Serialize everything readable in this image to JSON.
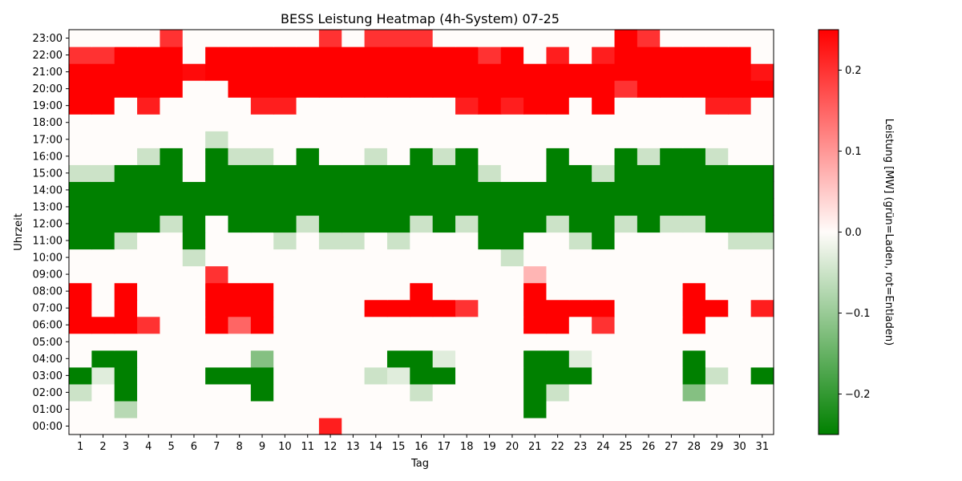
{
  "chart_data": {
    "type": "heatmap",
    "title": "BESS Leistung Heatmap (4h-System) 07-25",
    "xlabel": "Tag",
    "ylabel": "Uhrzeit",
    "colorbar_label": "Leistung [MW] (grün=Laden, rot=Entladen)",
    "colorbar_ticks": [
      {
        "value": 0.2,
        "label": "0.2"
      },
      {
        "value": 0.1,
        "label": "0.1"
      },
      {
        "value": 0.0,
        "label": "0.0"
      },
      {
        "value": -0.1,
        "label": "−0.1"
      },
      {
        "value": -0.2,
        "label": "−0.2"
      }
    ],
    "vmin": -0.25,
    "vmax": 0.25,
    "colors": {
      "negative": "#008000",
      "zero": "#fffcfa",
      "positive": "#ff0000"
    },
    "x_categories": [
      "1",
      "2",
      "3",
      "4",
      "5",
      "6",
      "7",
      "8",
      "9",
      "10",
      "11",
      "12",
      "13",
      "14",
      "15",
      "16",
      "17",
      "18",
      "19",
      "20",
      "21",
      "22",
      "23",
      "24",
      "25",
      "26",
      "27",
      "28",
      "29",
      "30",
      "31"
    ],
    "y_categories": [
      "00:00",
      "01:00",
      "02:00",
      "03:00",
      "04:00",
      "05:00",
      "06:00",
      "07:00",
      "08:00",
      "09:00",
      "10:00",
      "11:00",
      "12:00",
      "13:00",
      "14:00",
      "15:00",
      "16:00",
      "17:00",
      "18:00",
      "19:00",
      "20:00",
      "21:00",
      "22:00",
      "23:00"
    ],
    "hours": [
      {
        "hour": "00:00",
        "values": [
          0,
          0,
          0,
          0,
          0,
          0,
          0,
          0,
          0,
          0,
          0,
          0.22,
          0,
          0,
          0,
          0,
          0,
          0,
          0,
          0,
          0,
          0,
          0,
          0,
          0,
          0,
          0,
          0,
          0,
          0,
          0
        ]
      },
      {
        "hour": "01:00",
        "values": [
          0,
          0,
          -0.07,
          0,
          0,
          0,
          0,
          0,
          0,
          0,
          0,
          0,
          0,
          0,
          0,
          0,
          0,
          0,
          0,
          0,
          -0.25,
          0,
          0,
          0,
          0,
          0,
          0,
          0,
          0,
          0,
          0
        ]
      },
      {
        "hour": "02:00",
        "values": [
          -0.05,
          0,
          -0.25,
          0,
          0,
          0,
          0,
          0,
          -0.25,
          0,
          0,
          0,
          0,
          0,
          0,
          -0.05,
          0,
          0,
          0,
          0,
          -0.25,
          -0.05,
          0,
          0,
          0,
          0,
          0,
          -0.12,
          0,
          0,
          0
        ]
      },
      {
        "hour": "03:00",
        "values": [
          -0.25,
          -0.03,
          -0.25,
          0,
          0,
          0,
          -0.25,
          -0.25,
          -0.25,
          0,
          0,
          0,
          0,
          -0.05,
          -0.03,
          -0.25,
          -0.25,
          0,
          0,
          0,
          -0.25,
          -0.25,
          -0.25,
          0,
          0,
          0,
          0,
          -0.25,
          -0.05,
          0,
          -0.25
        ]
      },
      {
        "hour": "04:00",
        "values": [
          0,
          -0.25,
          -0.25,
          0,
          0,
          0,
          0,
          0,
          -0.12,
          0,
          0,
          0,
          0,
          0,
          -0.25,
          -0.25,
          -0.03,
          0,
          0,
          0,
          -0.25,
          -0.25,
          -0.03,
          0,
          0,
          0,
          0,
          -0.25,
          0,
          0,
          0
        ]
      },
      {
        "hour": "05:00",
        "values": [
          0,
          0,
          0,
          0,
          0,
          0,
          0,
          0,
          0,
          0,
          0,
          0,
          0,
          0,
          0,
          0,
          0,
          0,
          0,
          0,
          0,
          0,
          0,
          0,
          0,
          0,
          0,
          0,
          0,
          0,
          0
        ]
      },
      {
        "hour": "06:00",
        "values": [
          0.25,
          0.25,
          0.25,
          0.2,
          0,
          0,
          0.25,
          0.15,
          0.25,
          0,
          0,
          0,
          0,
          0,
          0,
          0,
          0,
          0,
          0,
          0,
          0.25,
          0.25,
          0,
          0.2,
          0,
          0,
          0,
          0.25,
          0,
          0,
          0
        ]
      },
      {
        "hour": "07:00",
        "values": [
          0.25,
          0,
          0.25,
          0,
          0,
          0,
          0.25,
          0.25,
          0.25,
          0,
          0,
          0,
          0,
          0.25,
          0.25,
          0.25,
          0.25,
          0.2,
          0,
          0,
          0.25,
          0.25,
          0.25,
          0.25,
          0,
          0,
          0,
          0.25,
          0.25,
          0,
          0.22
        ]
      },
      {
        "hour": "08:00",
        "values": [
          0.25,
          0,
          0.25,
          0,
          0,
          0,
          0.25,
          0.25,
          0.25,
          0,
          0,
          0,
          0,
          0,
          0,
          0.25,
          0,
          0,
          0,
          0,
          0.25,
          0,
          0,
          0,
          0,
          0,
          0,
          0.25,
          0,
          0,
          0
        ]
      },
      {
        "hour": "09:00",
        "values": [
          0,
          0,
          0,
          0,
          0,
          0,
          0.2,
          0,
          0,
          0,
          0,
          0,
          0,
          0,
          0,
          0,
          0,
          0,
          0,
          0,
          0.07,
          0,
          0,
          0,
          0,
          0,
          0,
          0,
          0,
          0,
          0
        ]
      },
      {
        "hour": "10:00",
        "values": [
          0,
          0,
          0,
          0,
          0,
          -0.05,
          0,
          0,
          0,
          0,
          0,
          0,
          0,
          0,
          0,
          0,
          0,
          0,
          0,
          -0.05,
          0,
          0,
          0,
          0,
          0,
          0,
          0,
          0,
          0,
          0,
          0
        ]
      },
      {
        "hour": "11:00",
        "values": [
          -0.25,
          -0.25,
          -0.05,
          0,
          0,
          -0.25,
          0,
          0,
          0,
          -0.05,
          0,
          -0.05,
          -0.05,
          0,
          -0.05,
          0,
          0,
          0,
          -0.25,
          -0.25,
          0,
          0,
          -0.05,
          -0.25,
          0,
          0,
          0,
          0,
          0,
          -0.05,
          -0.05
        ]
      },
      {
        "hour": "12:00",
        "values": [
          -0.25,
          -0.25,
          -0.25,
          -0.25,
          -0.05,
          -0.25,
          0,
          -0.25,
          -0.25,
          -0.25,
          -0.05,
          -0.25,
          -0.25,
          -0.25,
          -0.25,
          -0.05,
          -0.25,
          -0.05,
          -0.25,
          -0.25,
          -0.25,
          -0.05,
          -0.25,
          -0.25,
          -0.05,
          -0.25,
          -0.05,
          -0.05,
          -0.25,
          -0.25,
          -0.25
        ]
      },
      {
        "hour": "13:00",
        "values": [
          -0.25,
          -0.25,
          -0.25,
          -0.25,
          -0.25,
          -0.25,
          -0.25,
          -0.25,
          -0.25,
          -0.25,
          -0.25,
          -0.25,
          -0.25,
          -0.25,
          -0.25,
          -0.25,
          -0.25,
          -0.25,
          -0.25,
          -0.25,
          -0.25,
          -0.25,
          -0.25,
          -0.25,
          -0.25,
          -0.25,
          -0.25,
          -0.25,
          -0.25,
          -0.25,
          -0.25
        ]
      },
      {
        "hour": "14:00",
        "values": [
          -0.25,
          -0.25,
          -0.25,
          -0.25,
          -0.25,
          -0.25,
          -0.25,
          -0.25,
          -0.25,
          -0.25,
          -0.25,
          -0.25,
          -0.25,
          -0.25,
          -0.25,
          -0.25,
          -0.25,
          -0.25,
          -0.25,
          -0.25,
          -0.25,
          -0.25,
          -0.25,
          -0.25,
          -0.25,
          -0.25,
          -0.25,
          -0.25,
          -0.25,
          -0.25,
          -0.25
        ]
      },
      {
        "hour": "15:00",
        "values": [
          -0.05,
          -0.05,
          -0.25,
          -0.25,
          -0.25,
          0,
          -0.25,
          -0.25,
          -0.25,
          -0.25,
          -0.25,
          -0.25,
          -0.25,
          -0.25,
          -0.25,
          -0.25,
          -0.25,
          -0.25,
          -0.05,
          0,
          0,
          -0.25,
          -0.25,
          -0.05,
          -0.25,
          -0.25,
          -0.25,
          -0.25,
          -0.25,
          -0.25,
          -0.25
        ]
      },
      {
        "hour": "16:00",
        "values": [
          0,
          0,
          0,
          -0.05,
          -0.25,
          0,
          -0.25,
          -0.05,
          -0.05,
          0,
          -0.25,
          0,
          0,
          -0.05,
          0,
          -0.25,
          -0.05,
          -0.25,
          0,
          0,
          0,
          -0.25,
          0,
          0,
          -0.25,
          -0.05,
          -0.25,
          -0.25,
          -0.05,
          0,
          0
        ]
      },
      {
        "hour": "17:00",
        "values": [
          0,
          0,
          0,
          0,
          0,
          0,
          -0.05,
          0,
          0,
          0,
          0,
          0,
          0,
          0,
          0,
          0,
          0,
          0,
          0,
          0,
          0,
          0,
          0,
          0,
          0,
          0,
          0,
          0,
          0,
          0,
          0
        ]
      },
      {
        "hour": "18:00",
        "values": [
          0,
          0,
          0,
          0,
          0,
          0,
          0,
          0,
          0,
          0,
          0,
          0,
          0,
          0,
          0,
          0,
          0,
          0,
          0,
          0,
          0,
          0,
          0,
          0,
          0,
          0,
          0,
          0,
          0,
          0,
          0
        ]
      },
      {
        "hour": "19:00",
        "values": [
          0.25,
          0.25,
          0,
          0.22,
          0,
          0,
          0,
          0,
          0.22,
          0.22,
          0,
          0,
          0,
          0,
          0,
          0,
          0,
          0.22,
          0.25,
          0.22,
          0.25,
          0.25,
          0,
          0.25,
          0,
          0,
          0,
          0,
          0.22,
          0.22,
          0
        ]
      },
      {
        "hour": "20:00",
        "values": [
          0.25,
          0.25,
          0.25,
          0.25,
          0.25,
          0,
          0,
          0.25,
          0.25,
          0.25,
          0.25,
          0.25,
          0.25,
          0.25,
          0.25,
          0.25,
          0.25,
          0.25,
          0.25,
          0.25,
          0.25,
          0.25,
          0.25,
          0.25,
          0.2,
          0.25,
          0.25,
          0.25,
          0.25,
          0.25,
          0.25
        ]
      },
      {
        "hour": "21:00",
        "values": [
          0.25,
          0.25,
          0.25,
          0.25,
          0.25,
          0.24,
          0.25,
          0.25,
          0.25,
          0.25,
          0.25,
          0.25,
          0.25,
          0.25,
          0.25,
          0.25,
          0.25,
          0.25,
          0.25,
          0.25,
          0.25,
          0.25,
          0.25,
          0.25,
          0.25,
          0.25,
          0.25,
          0.25,
          0.25,
          0.25,
          0.23
        ]
      },
      {
        "hour": "22:00",
        "values": [
          0.2,
          0.2,
          0.25,
          0.25,
          0.25,
          0,
          0.25,
          0.25,
          0.25,
          0.25,
          0.25,
          0.25,
          0.25,
          0.25,
          0.25,
          0.25,
          0.25,
          0.25,
          0.2,
          0.25,
          0,
          0.22,
          0,
          0.22,
          0.25,
          0.25,
          0.25,
          0.25,
          0.25,
          0.25,
          0
        ]
      },
      {
        "hour": "23:00",
        "values": [
          0,
          0,
          0,
          0,
          0.2,
          0,
          0,
          0,
          0,
          0,
          0,
          0.2,
          0,
          0.2,
          0.2,
          0.2,
          0,
          0,
          0,
          0,
          0,
          0,
          0,
          0,
          0.25,
          0.2,
          0,
          0,
          0,
          0,
          0
        ]
      }
    ]
  }
}
